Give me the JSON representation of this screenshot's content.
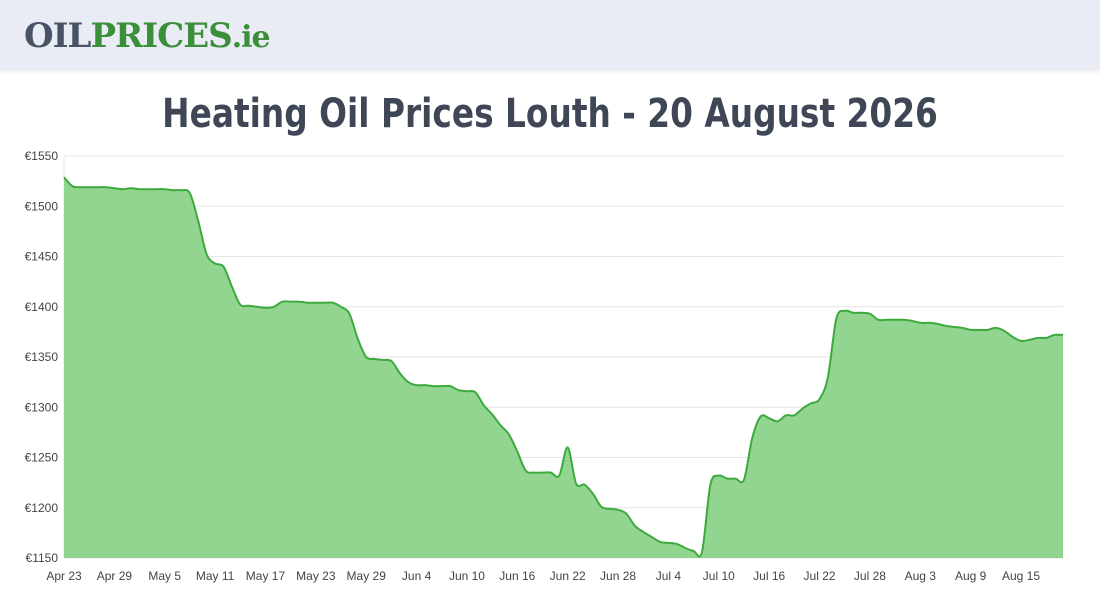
{
  "header": {
    "logo_part1": "OIL",
    "logo_part2": "PRICES",
    "logo_part3": ".ie"
  },
  "page_title": "Heating Oil Prices Louth - 20 August 2026",
  "colors": {
    "line": "#3daa3d",
    "fill": "#91d591",
    "grid": "#e6e6e6",
    "axis": "#444444"
  },
  "chart_data": {
    "type": "area",
    "title": "",
    "xlabel": "",
    "ylabel": "",
    "ylim": [
      1150,
      1550
    ],
    "grid": true,
    "y_ticks": [
      {
        "v": 1150,
        "label": "€1150"
      },
      {
        "v": 1200,
        "label": "€1200"
      },
      {
        "v": 1250,
        "label": "€1250"
      },
      {
        "v": 1300,
        "label": "€1300"
      },
      {
        "v": 1350,
        "label": "€1350"
      },
      {
        "v": 1400,
        "label": "€1400"
      },
      {
        "v": 1450,
        "label": "€1450"
      },
      {
        "v": 1500,
        "label": "€1500"
      },
      {
        "v": 1550,
        "label": "€1550"
      }
    ],
    "x_range": [
      "2026-04-23",
      "2026-08-20"
    ],
    "x_ticks": [
      {
        "date": "2026-04-23",
        "label": "Apr 23"
      },
      {
        "date": "2026-04-29",
        "label": "Apr 29"
      },
      {
        "date": "2026-05-05",
        "label": "May 5"
      },
      {
        "date": "2026-05-11",
        "label": "May 11"
      },
      {
        "date": "2026-05-17",
        "label": "May 17"
      },
      {
        "date": "2026-05-23",
        "label": "May 23"
      },
      {
        "date": "2026-05-29",
        "label": "May 29"
      },
      {
        "date": "2026-06-04",
        "label": "Jun 4"
      },
      {
        "date": "2026-06-10",
        "label": "Jun 10"
      },
      {
        "date": "2026-06-16",
        "label": "Jun 16"
      },
      {
        "date": "2026-06-22",
        "label": "Jun 22"
      },
      {
        "date": "2026-06-28",
        "label": "Jun 28"
      },
      {
        "date": "2026-07-04",
        "label": "Jul 4"
      },
      {
        "date": "2026-07-10",
        "label": "Jul 10"
      },
      {
        "date": "2026-07-16",
        "label": "Jul 16"
      },
      {
        "date": "2026-07-22",
        "label": "Jul 22"
      },
      {
        "date": "2026-07-28",
        "label": "Jul 28"
      },
      {
        "date": "2026-08-03",
        "label": "Aug 3"
      },
      {
        "date": "2026-08-09",
        "label": "Aug 9"
      },
      {
        "date": "2026-08-15",
        "label": "Aug 15"
      }
    ],
    "points": [
      [
        "2026-04-23",
        1529
      ],
      [
        "2026-04-24",
        1520
      ],
      [
        "2026-04-25",
        1519
      ],
      [
        "2026-04-26",
        1519
      ],
      [
        "2026-04-27",
        1519
      ],
      [
        "2026-04-28",
        1519
      ],
      [
        "2026-04-29",
        1518
      ],
      [
        "2026-04-30",
        1517
      ],
      [
        "2026-05-01",
        1518
      ],
      [
        "2026-05-02",
        1517
      ],
      [
        "2026-05-03",
        1517
      ],
      [
        "2026-05-04",
        1517
      ],
      [
        "2026-05-05",
        1517
      ],
      [
        "2026-05-06",
        1516
      ],
      [
        "2026-05-07",
        1516
      ],
      [
        "2026-05-08",
        1513
      ],
      [
        "2026-05-09",
        1485
      ],
      [
        "2026-05-10",
        1452
      ],
      [
        "2026-05-11",
        1443
      ],
      [
        "2026-05-12",
        1440
      ],
      [
        "2026-05-13",
        1420
      ],
      [
        "2026-05-14",
        1402
      ],
      [
        "2026-05-15",
        1401
      ],
      [
        "2026-05-16",
        1400
      ],
      [
        "2026-05-17",
        1399
      ],
      [
        "2026-05-18",
        1400
      ],
      [
        "2026-05-19",
        1405
      ],
      [
        "2026-05-20",
        1405
      ],
      [
        "2026-05-21",
        1405
      ],
      [
        "2026-05-22",
        1404
      ],
      [
        "2026-05-23",
        1404
      ],
      [
        "2026-05-24",
        1404
      ],
      [
        "2026-05-25",
        1404
      ],
      [
        "2026-05-26",
        1400
      ],
      [
        "2026-05-27",
        1393
      ],
      [
        "2026-05-28",
        1368
      ],
      [
        "2026-05-29",
        1350
      ],
      [
        "2026-05-30",
        1348
      ],
      [
        "2026-05-31",
        1347
      ],
      [
        "2026-06-01",
        1346
      ],
      [
        "2026-06-02",
        1334
      ],
      [
        "2026-06-03",
        1325
      ],
      [
        "2026-06-04",
        1322
      ],
      [
        "2026-06-05",
        1322
      ],
      [
        "2026-06-06",
        1321
      ],
      [
        "2026-06-07",
        1321
      ],
      [
        "2026-06-08",
        1321
      ],
      [
        "2026-06-09",
        1317
      ],
      [
        "2026-06-10",
        1316
      ],
      [
        "2026-06-11",
        1315
      ],
      [
        "2026-06-12",
        1302
      ],
      [
        "2026-06-13",
        1293
      ],
      [
        "2026-06-14",
        1282
      ],
      [
        "2026-06-15",
        1273
      ],
      [
        "2026-06-16",
        1256
      ],
      [
        "2026-06-17",
        1237
      ],
      [
        "2026-06-18",
        1235
      ],
      [
        "2026-06-19",
        1235
      ],
      [
        "2026-06-20",
        1235
      ],
      [
        "2026-06-21",
        1232
      ],
      [
        "2026-06-22",
        1260
      ],
      [
        "2026-06-23",
        1224
      ],
      [
        "2026-06-24",
        1223
      ],
      [
        "2026-06-25",
        1214
      ],
      [
        "2026-06-26",
        1201
      ],
      [
        "2026-06-27",
        1199
      ],
      [
        "2026-06-28",
        1198
      ],
      [
        "2026-06-29",
        1194
      ],
      [
        "2026-06-30",
        1182
      ],
      [
        "2026-07-01",
        1176
      ],
      [
        "2026-07-02",
        1171
      ],
      [
        "2026-07-03",
        1166
      ],
      [
        "2026-07-04",
        1165
      ],
      [
        "2026-07-05",
        1164
      ],
      [
        "2026-07-06",
        1160
      ],
      [
        "2026-07-07",
        1157
      ],
      [
        "2026-07-08",
        1156
      ],
      [
        "2026-07-09",
        1223
      ],
      [
        "2026-07-10",
        1232
      ],
      [
        "2026-07-11",
        1229
      ],
      [
        "2026-07-12",
        1229
      ],
      [
        "2026-07-13",
        1228
      ],
      [
        "2026-07-14",
        1270
      ],
      [
        "2026-07-15",
        1291
      ],
      [
        "2026-07-16",
        1289
      ],
      [
        "2026-07-17",
        1286
      ],
      [
        "2026-07-18",
        1292
      ],
      [
        "2026-07-19",
        1292
      ],
      [
        "2026-07-20",
        1299
      ],
      [
        "2026-07-21",
        1304
      ],
      [
        "2026-07-22",
        1308
      ],
      [
        "2026-07-23",
        1330
      ],
      [
        "2026-07-24",
        1388
      ],
      [
        "2026-07-25",
        1396
      ],
      [
        "2026-07-26",
        1394
      ],
      [
        "2026-07-27",
        1394
      ],
      [
        "2026-07-28",
        1393
      ],
      [
        "2026-07-29",
        1387
      ],
      [
        "2026-07-30",
        1387
      ],
      [
        "2026-07-31",
        1387
      ],
      [
        "2026-08-01",
        1387
      ],
      [
        "2026-08-02",
        1386
      ],
      [
        "2026-08-03",
        1384
      ],
      [
        "2026-08-04",
        1384
      ],
      [
        "2026-08-05",
        1383
      ],
      [
        "2026-08-06",
        1381
      ],
      [
        "2026-08-07",
        1380
      ],
      [
        "2026-08-08",
        1379
      ],
      [
        "2026-08-09",
        1377
      ],
      [
        "2026-08-10",
        1377
      ],
      [
        "2026-08-11",
        1377
      ],
      [
        "2026-08-12",
        1379
      ],
      [
        "2026-08-13",
        1376
      ],
      [
        "2026-08-14",
        1370
      ],
      [
        "2026-08-15",
        1366
      ],
      [
        "2026-08-16",
        1367
      ],
      [
        "2026-08-17",
        1369
      ],
      [
        "2026-08-18",
        1369
      ],
      [
        "2026-08-19",
        1372
      ],
      [
        "2026-08-20",
        1372
      ]
    ]
  }
}
